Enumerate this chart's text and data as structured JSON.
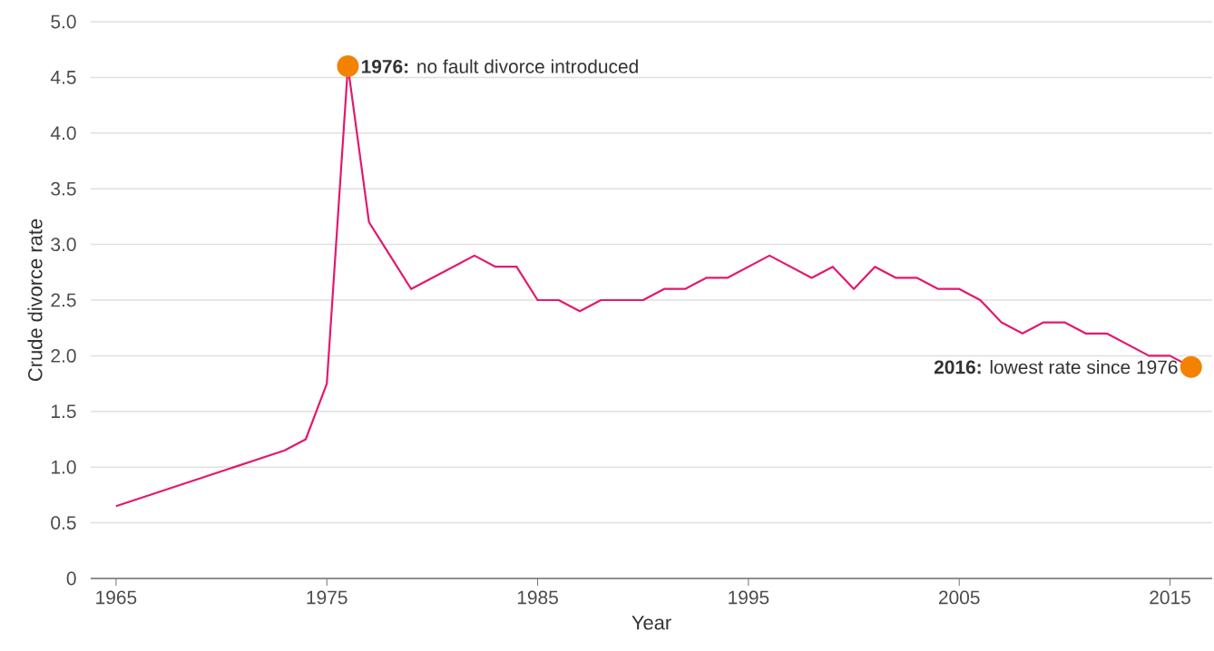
{
  "chart_data": {
    "type": "line",
    "xlabel": "Year",
    "ylabel": "Crude divorce rate",
    "x": [
      1965,
      1973,
      1974,
      1975,
      1976,
      1977,
      1978,
      1979,
      1982,
      1983,
      1984,
      1985,
      1986,
      1987,
      1988,
      1990,
      1991,
      1992,
      1993,
      1994,
      1996,
      1998,
      1999,
      2000,
      2001,
      2002,
      2003,
      2004,
      2005,
      2006,
      2007,
      2008,
      2009,
      2010,
      2011,
      2012,
      2014,
      2015,
      2016
    ],
    "series": [
      {
        "color": "#e2196f",
        "values": [
          0.65,
          1.15,
          1.25,
          1.75,
          4.6,
          3.2,
          2.9,
          2.6,
          2.9,
          2.8,
          2.8,
          2.5,
          2.5,
          2.4,
          2.5,
          2.5,
          2.6,
          2.6,
          2.7,
          2.7,
          2.9,
          2.7,
          2.8,
          2.6,
          2.8,
          2.7,
          2.7,
          2.6,
          2.6,
          2.5,
          2.3,
          2.2,
          2.3,
          2.3,
          2.2,
          2.2,
          2.0,
          2.0,
          1.9
        ]
      }
    ],
    "xlim": [
      1963.8,
      2017
    ],
    "xticks": [
      1965,
      1975,
      1985,
      1995,
      2005,
      2015
    ],
    "ylim": [
      0,
      5
    ],
    "yticks": [
      {
        "value": 0,
        "label": "0"
      },
      {
        "value": 0.5,
        "label": "0.5"
      },
      {
        "value": 1,
        "label": "1.0"
      },
      {
        "value": 1.5,
        "label": "1.5"
      },
      {
        "value": 2,
        "label": "2.0"
      },
      {
        "value": 2.5,
        "label": "2.5"
      },
      {
        "value": 3,
        "label": "3.0"
      },
      {
        "value": 3.5,
        "label": "3.5"
      },
      {
        "value": 4,
        "label": "4.0"
      },
      {
        "value": 4.5,
        "label": "4.5"
      },
      {
        "value": 5,
        "label": "5.0"
      }
    ],
    "grid": "y",
    "annotations": [
      {
        "text": "**1976:** no fault divorce introduced",
        "x": 1976,
        "y": 4.6
      },
      {
        "text": "**2016:** lowest rate since 1976",
        "x": 2016,
        "y": 1.9
      }
    ]
  }
}
